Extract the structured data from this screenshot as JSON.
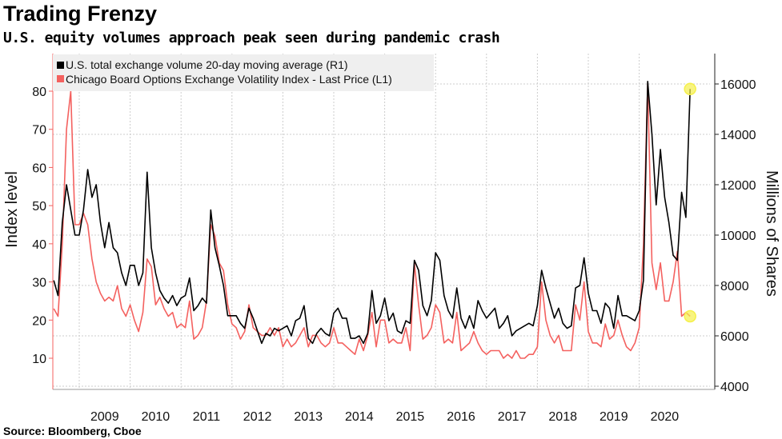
{
  "header": {
    "title": "Trading Frenzy",
    "subtitle": "U.S. equity volumes approach peak seen during pandemic crash"
  },
  "footer": {
    "source": "Source: Bloomberg, Cboe"
  },
  "chart_data": {
    "type": "line",
    "left_axis": {
      "label": "Index level",
      "ticks": [
        10,
        20,
        30,
        40,
        50,
        60,
        70,
        80
      ],
      "range": [
        2,
        90
      ]
    },
    "right_axis": {
      "label": "Millions of Shares",
      "ticks": [
        4000,
        6000,
        8000,
        10000,
        12000,
        14000,
        16000
      ],
      "range": [
        3800,
        17200
      ]
    },
    "x_ticks": [
      "2009",
      "2010",
      "2011",
      "2012",
      "2013",
      "2014",
      "2015",
      "2016",
      "2017",
      "2018",
      "2019",
      "2020"
    ],
    "grid": true,
    "legend_position": "top-left",
    "highlight_last_points": true,
    "highlight_color": "#f5f04a",
    "series": [
      {
        "name": "U.S. total exchange volume 20-day moving average (R1)",
        "axis": "right",
        "color": "#000000",
        "start": "2008-07",
        "values": [
          8200,
          7600,
          10500,
          12000,
          11000,
          10000,
          10000,
          11000,
          12600,
          11500,
          12000,
          10500,
          9500,
          10500,
          9500,
          9300,
          8500,
          8000,
          8800,
          8800,
          8000,
          8500,
          12500,
          9500,
          8500,
          7800,
          7500,
          7300,
          7600,
          7200,
          7500,
          7600,
          8300,
          7000,
          7200,
          7500,
          7300,
          11000,
          9500,
          8800,
          8000,
          6800,
          6800,
          6800,
          6500,
          6300,
          7100,
          6700,
          6200,
          5700,
          6100,
          6000,
          6300,
          6200,
          6300,
          6400,
          6000,
          6600,
          6700,
          7200,
          5900,
          5700,
          6100,
          6300,
          6100,
          6000,
          6900,
          7100,
          6700,
          6700,
          5900,
          5900,
          6000,
          5700,
          6100,
          7800,
          6500,
          6800,
          7500,
          6600,
          6900,
          6200,
          6100,
          6600,
          6500,
          9000,
          8600,
          7200,
          6800,
          7400,
          9300,
          9000,
          7600,
          7000,
          6700,
          7900,
          6700,
          6300,
          6800,
          6300,
          7400,
          7000,
          6700,
          6900,
          7100,
          6300,
          6500,
          6800,
          6000,
          6200,
          6300,
          6400,
          6500,
          6400,
          7200,
          8600,
          7900,
          7300,
          6700,
          7100,
          6500,
          6300,
          6400,
          7900,
          8000,
          9100,
          7700,
          7000,
          7000,
          6500,
          7300,
          7100,
          6300,
          7600,
          6800,
          6800,
          6700,
          6600,
          7000,
          8200,
          16100,
          14000,
          11200,
          13400,
          11500,
          10500,
          9200,
          9000,
          11700,
          10700,
          15800
        ]
      },
      {
        "name": "Chicago Board Options Exchange Volatility Index - Last Price (L1)",
        "axis": "left",
        "color": "#f4615f",
        "start": "2008-07",
        "values": [
          23,
          21,
          40,
          70,
          80,
          45,
          45,
          48,
          45,
          36,
          30,
          27,
          25,
          26,
          25,
          29,
          23,
          21,
          24,
          20,
          17,
          22,
          36,
          34,
          24,
          26,
          23,
          21,
          22,
          18,
          19,
          18,
          25,
          15,
          16,
          18,
          25,
          45,
          42,
          35,
          33,
          24,
          19,
          18,
          15,
          17,
          24,
          18,
          17,
          16,
          16,
          18,
          16,
          18,
          13,
          15,
          13,
          14,
          16,
          18,
          13,
          16,
          16,
          14,
          13,
          14,
          18,
          14,
          14,
          13,
          12,
          11,
          15,
          12,
          16,
          22,
          13,
          20,
          20,
          14,
          15,
          14,
          14,
          18,
          12,
          35,
          24,
          15,
          16,
          18,
          24,
          22,
          14,
          15,
          14,
          22,
          12,
          13,
          14,
          17,
          14,
          12,
          11,
          12,
          12,
          12,
          10,
          11,
          10,
          12,
          10,
          10,
          11,
          11,
          13,
          30,
          20,
          16,
          14,
          16,
          12,
          12,
          12,
          24,
          20,
          30,
          17,
          14,
          14,
          13,
          19,
          15,
          16,
          20,
          16,
          13,
          12,
          14,
          18,
          40,
          82,
          35,
          28,
          35,
          25,
          25,
          30,
          38,
          21,
          22,
          21
        ]
      }
    ]
  }
}
